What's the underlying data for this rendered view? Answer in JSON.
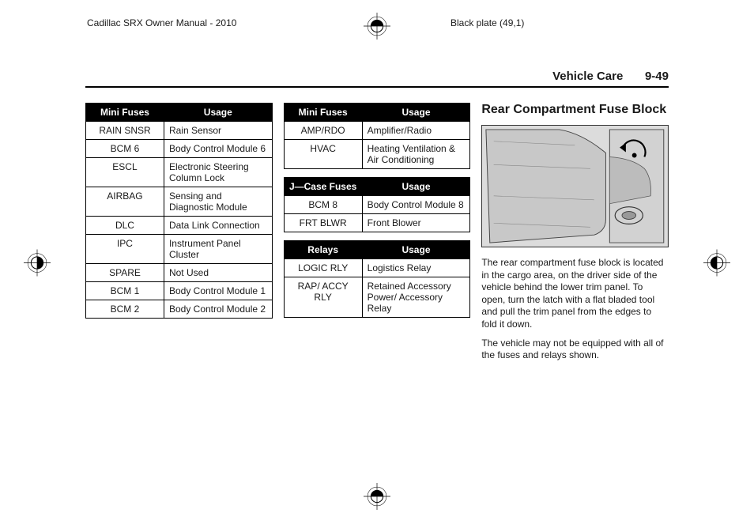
{
  "top_left_text": "Cadillac SRX Owner Manual - 2010",
  "top_right_text": "Black plate (49,1)",
  "section_title": "Vehicle Care",
  "page_number": "9-49",
  "table1": {
    "head": [
      "Mini Fuses",
      "Usage"
    ],
    "rows": [
      [
        "RAIN SNSR",
        "Rain Sensor"
      ],
      [
        "BCM 6",
        "Body Control Module 6"
      ],
      [
        "ESCL",
        "Electronic Steering Column Lock"
      ],
      [
        "AIRBAG",
        "Sensing and Diagnostic Module"
      ],
      [
        "DLC",
        "Data Link Connection"
      ],
      [
        "IPC",
        "Instrument Panel Cluster"
      ],
      [
        "SPARE",
        "Not Used"
      ],
      [
        "BCM 1",
        "Body Control Module 1"
      ],
      [
        "BCM 2",
        "Body Control Module 2"
      ]
    ]
  },
  "table2": {
    "head": [
      "Mini Fuses",
      "Usage"
    ],
    "rows": [
      [
        "AMP/RDO",
        "Amplifier/Radio"
      ],
      [
        "HVAC",
        "Heating Ventilation & Air Conditioning"
      ]
    ]
  },
  "table3": {
    "head": [
      "J—Case Fuses",
      "Usage"
    ],
    "rows": [
      [
        "BCM 8",
        "Body Control Module 8"
      ],
      [
        "FRT BLWR",
        "Front Blower"
      ]
    ]
  },
  "table4": {
    "head": [
      "Relays",
      "Usage"
    ],
    "rows": [
      [
        "LOGIC RLY",
        "Logistics Relay"
      ],
      [
        "RAP/ ACCY RLY",
        "Retained Accessory Power/ Accessory Relay"
      ]
    ]
  },
  "col3_title": "Rear Compartment Fuse Block",
  "para1": "The rear compartment fuse block is located in the cargo area, on the driver side of the vehicle behind the lower trim panel. To open, turn the latch with a flat bladed tool and pull the trim panel from the edges to fold it down.",
  "para2": "The vehicle may not be equipped with all of the fuses and relays shown.",
  "colors": {
    "table_header_bg": "#000000",
    "table_header_fg": "#ffffff",
    "text": "#1a1a1a",
    "border": "#000000"
  }
}
